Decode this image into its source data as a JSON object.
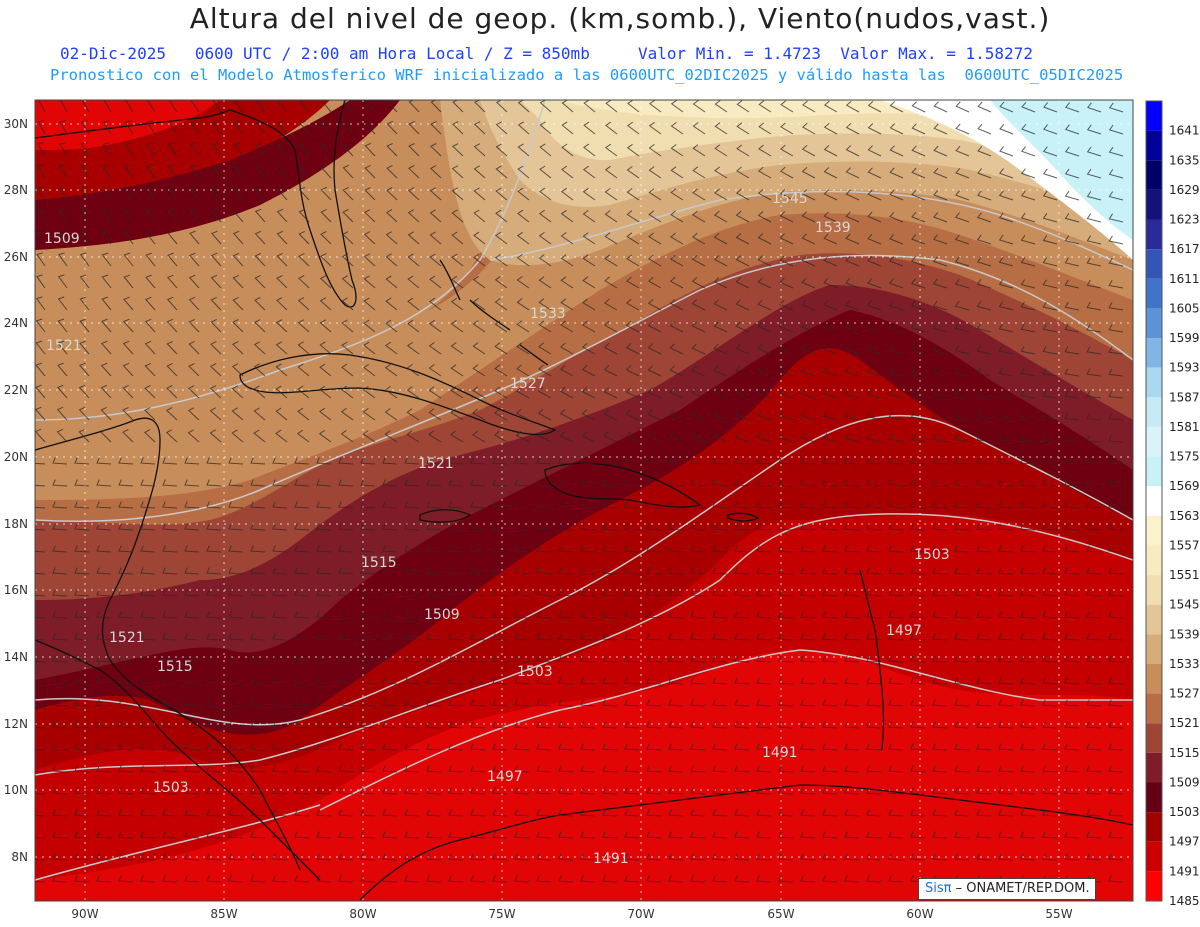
{
  "header": {
    "title": "Altura del nivel de geop. (km,somb.), Viento(nudos,vast.)",
    "date": "02-Dic-2025",
    "time": "0600 UTC / 2:00 am Hora Local / Z = 850mb",
    "min_label": "Valor Min. = 1.4723",
    "max_label": "Valor Max. = 1.58272",
    "model_note": "Pronostico con el Modelo Atmosferico WRF inicializado a las 0600UTC_02DIC2025 y válido hasta las  0600UTC_05DIC2025"
  },
  "map": {
    "lat_labels": [
      "30N",
      "28N",
      "26N",
      "24N",
      "22N",
      "20N",
      "18N",
      "16N",
      "14N",
      "12N",
      "10N",
      "8N"
    ],
    "lon_labels": [
      "90W",
      "85W",
      "80W",
      "75W",
      "70W",
      "65W",
      "60W",
      "55W"
    ],
    "contour_labels": [
      "1509",
      "1521",
      "1545",
      "1539",
      "1533",
      "1527",
      "1521",
      "1515",
      "1509",
      "1503",
      "1521",
      "1515",
      "1503",
      "1497",
      "1491",
      "1497",
      "1491",
      "1503"
    ]
  },
  "colorbar": {
    "levels": [
      "1641",
      "1635",
      "1629",
      "1623",
      "1617",
      "1611",
      "1605",
      "1599",
      "1593",
      "1587",
      "1581",
      "1575",
      "1569",
      "1563",
      "1557",
      "1551",
      "1545",
      "1539",
      "1533",
      "1527",
      "1521",
      "1515",
      "1509",
      "1503",
      "1497",
      "1491",
      "1485"
    ],
    "colors": [
      "#0000ff",
      "#00009a",
      "#00006a",
      "#12127a",
      "#2a2a9a",
      "#3355b5",
      "#3f74c8",
      "#5b93d6",
      "#80b6e6",
      "#aad7f1",
      "#c6ebf7",
      "#daf3fa",
      "#c8f2f8",
      "#ffffff",
      "#fbf1cc",
      "#f8ebc2",
      "#f1deb0",
      "#e3c598",
      "#d6ac7a",
      "#c78d5a",
      "#b86e45",
      "#9e4536",
      "#7e1c27",
      "#640016",
      "#a00000",
      "#cc0000",
      "#ff0000"
    ]
  },
  "credit": {
    "brand": "Sisπ",
    "text": "– ONAMET/REP.DOM."
  }
}
